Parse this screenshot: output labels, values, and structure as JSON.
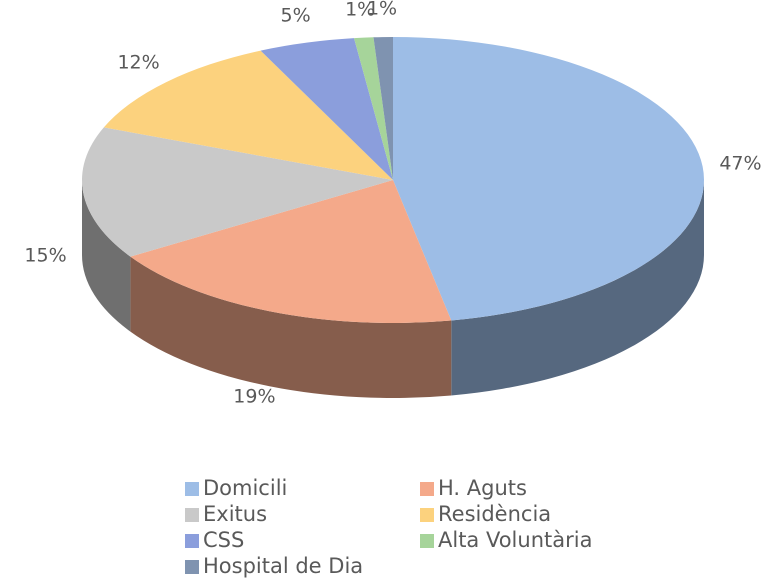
{
  "chart_data": {
    "type": "pie3d",
    "categories": [
      "Domicili",
      "H. Aguts",
      "Exitus",
      "Residència",
      "CSS",
      "Alta Voluntària",
      "Hospital de Dia"
    ],
    "values": [
      47,
      19,
      15,
      12,
      5,
      1,
      1
    ],
    "value_labels": [
      "47%",
      "19%",
      "15%",
      "12%",
      "5%",
      "1%",
      "1%"
    ],
    "colors": [
      "#9dbde6",
      "#f4a98a",
      "#c9c9c9",
      "#fcd27e",
      "#8b9edc",
      "#a6d49a",
      "#7f93b0"
    ],
    "legend": "bottom"
  }
}
